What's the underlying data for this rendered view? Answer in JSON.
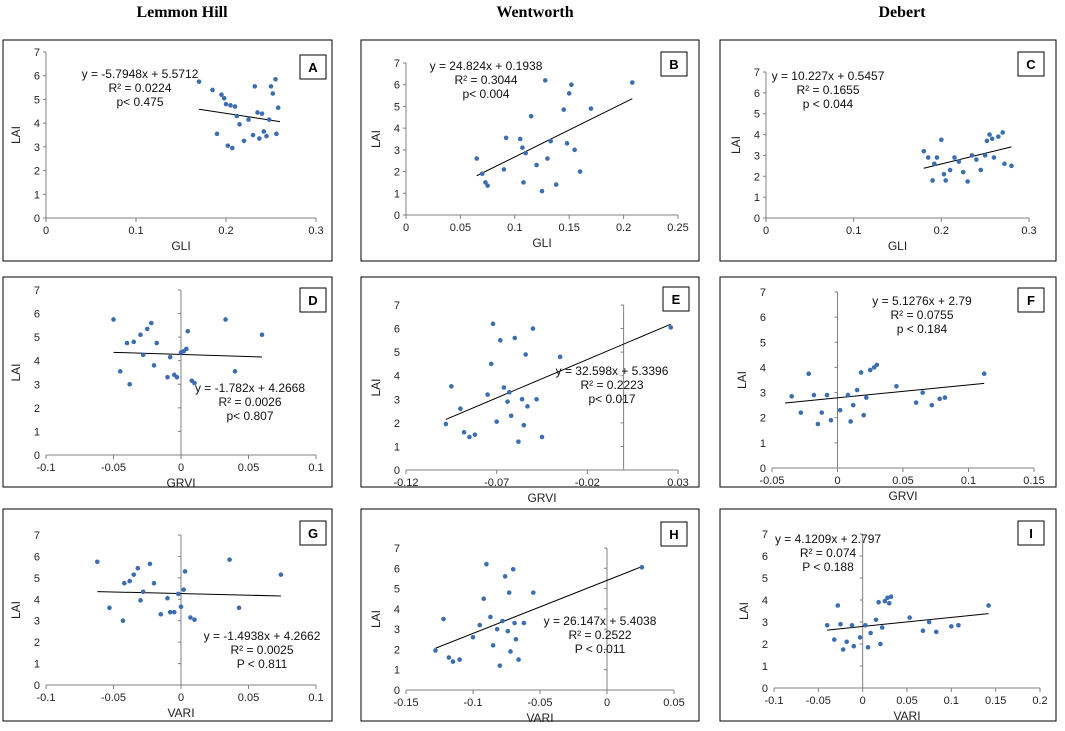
{
  "columns": [
    "Lemmon Hill",
    "Wentworth",
    "Debert"
  ],
  "colors": {
    "point": "#3b6db3",
    "trend": "#000000",
    "axis": "#808080"
  },
  "chart_data": [
    {
      "id": "A",
      "type": "scatter",
      "xlabel": "GLI",
      "ylabel": "LAI",
      "xlim": [
        0,
        0.3
      ],
      "xticks": [
        "0",
        "0.1",
        "0.2",
        "0.3"
      ],
      "ylim": [
        0,
        7
      ],
      "yticks": [
        "0",
        "1",
        "2",
        "3",
        "4",
        "5",
        "6",
        "7"
      ],
      "equation": [
        "y = -5.7948x + 5.5712",
        "R² = 0.0224",
        "p< 0.475"
      ],
      "trend": {
        "slope": -5.7948,
        "intercept": 5.5712,
        "x_range": [
          0.17,
          0.26
        ]
      },
      "points": [
        [
          0.17,
          5.75
        ],
        [
          0.185,
          5.4
        ],
        [
          0.19,
          3.55
        ],
        [
          0.195,
          5.2
        ],
        [
          0.198,
          5.05
        ],
        [
          0.2,
          4.8
        ],
        [
          0.202,
          3.05
        ],
        [
          0.205,
          4.75
        ],
        [
          0.207,
          2.95
        ],
        [
          0.21,
          4.7
        ],
        [
          0.212,
          4.3
        ],
        [
          0.215,
          3.95
        ],
        [
          0.22,
          3.25
        ],
        [
          0.225,
          4.15
        ],
        [
          0.23,
          3.5
        ],
        [
          0.232,
          5.55
        ],
        [
          0.235,
          4.45
        ],
        [
          0.237,
          3.35
        ],
        [
          0.24,
          4.4
        ],
        [
          0.242,
          3.65
        ],
        [
          0.245,
          3.45
        ],
        [
          0.248,
          4.15
        ],
        [
          0.25,
          5.55
        ],
        [
          0.252,
          5.25
        ],
        [
          0.255,
          5.85
        ],
        [
          0.256,
          3.55
        ],
        [
          0.258,
          4.65
        ]
      ]
    },
    {
      "id": "B",
      "type": "scatter",
      "xlabel": "GLI",
      "ylabel": "LAI",
      "xlim": [
        0,
        0.25
      ],
      "xticks": [
        "0",
        "0.05",
        "0.1",
        "0.15",
        "0.2",
        "0.25"
      ],
      "ylim": [
        0,
        7
      ],
      "yticks": [
        "0",
        "1",
        "2",
        "3",
        "4",
        "5",
        "6",
        "7"
      ],
      "equation": [
        "y = 24.824x + 0.1938",
        "R² = 0.3044",
        "p< 0.004"
      ],
      "trend": {
        "slope": 24.824,
        "intercept": 0.1938,
        "x_range": [
          0.065,
          0.208
        ]
      },
      "points": [
        [
          0.065,
          2.6
        ],
        [
          0.07,
          1.9
        ],
        [
          0.073,
          1.5
        ],
        [
          0.075,
          1.35
        ],
        [
          0.09,
          2.1
        ],
        [
          0.092,
          3.55
        ],
        [
          0.105,
          3.5
        ],
        [
          0.107,
          3.1
        ],
        [
          0.11,
          2.85
        ],
        [
          0.108,
          1.5
        ],
        [
          0.115,
          4.55
        ],
        [
          0.12,
          2.3
        ],
        [
          0.125,
          1.1
        ],
        [
          0.128,
          6.2
        ],
        [
          0.13,
          2.6
        ],
        [
          0.133,
          3.4
        ],
        [
          0.138,
          1.4
        ],
        [
          0.145,
          4.85
        ],
        [
          0.148,
          3.3
        ],
        [
          0.15,
          5.6
        ],
        [
          0.152,
          6.0
        ],
        [
          0.155,
          3.0
        ],
        [
          0.16,
          2.0
        ],
        [
          0.17,
          4.9
        ],
        [
          0.208,
          6.1
        ]
      ]
    },
    {
      "id": "C",
      "type": "scatter",
      "xlabel": "GLI",
      "ylabel": "LAI",
      "xlim": [
        0,
        0.3
      ],
      "xticks": [
        "0",
        "0.1",
        "0.2",
        "0.3"
      ],
      "ylim": [
        0,
        7
      ],
      "yticks": [
        "0",
        "1",
        "2",
        "3",
        "4",
        "5",
        "6",
        "7"
      ],
      "equation": [
        "y = 10.227x + 0.5457",
        "R² = 0.1655",
        "p < 0.044"
      ],
      "trend": {
        "slope": 10.227,
        "intercept": 0.5457,
        "x_range": [
          0.18,
          0.28
        ]
      },
      "points": [
        [
          0.18,
          3.2
        ],
        [
          0.185,
          2.9
        ],
        [
          0.19,
          1.8
        ],
        [
          0.192,
          2.6
        ],
        [
          0.195,
          2.9
        ],
        [
          0.2,
          3.75
        ],
        [
          0.203,
          2.1
        ],
        [
          0.205,
          1.8
        ],
        [
          0.21,
          2.3
        ],
        [
          0.215,
          2.9
        ],
        [
          0.22,
          2.7
        ],
        [
          0.225,
          2.2
        ],
        [
          0.23,
          1.75
        ],
        [
          0.235,
          3.0
        ],
        [
          0.24,
          2.8
        ],
        [
          0.245,
          2.3
        ],
        [
          0.25,
          3.0
        ],
        [
          0.252,
          3.7
        ],
        [
          0.255,
          4.0
        ],
        [
          0.258,
          3.8
        ],
        [
          0.26,
          2.9
        ],
        [
          0.265,
          3.9
        ],
        [
          0.27,
          4.1
        ],
        [
          0.272,
          2.6
        ],
        [
          0.28,
          2.5
        ]
      ]
    },
    {
      "id": "D",
      "type": "scatter",
      "xlabel": "GRVI",
      "ylabel": "LAI",
      "xlim": [
        -0.1,
        0.1
      ],
      "xticks": [
        "-0.1",
        "-0.05",
        "0",
        "0.05",
        "0.1"
      ],
      "ylim": [
        0,
        7
      ],
      "yticks": [
        "0",
        "1",
        "2",
        "3",
        "4",
        "5",
        "6",
        "7"
      ],
      "equation": [
        "y = -1.782x + 4.2668",
        "R² = 0.0026",
        "p< 0.807"
      ],
      "trend": {
        "slope": -1.782,
        "intercept": 4.2668,
        "x_range": [
          -0.05,
          0.06
        ]
      },
      "points": [
        [
          -0.05,
          5.75
        ],
        [
          -0.045,
          3.55
        ],
        [
          -0.04,
          4.75
        ],
        [
          -0.038,
          3.0
        ],
        [
          -0.035,
          4.8
        ],
        [
          -0.03,
          5.1
        ],
        [
          -0.028,
          4.25
        ],
        [
          -0.025,
          5.35
        ],
        [
          -0.022,
          5.6
        ],
        [
          -0.02,
          3.8
        ],
        [
          -0.018,
          4.75
        ],
        [
          -0.01,
          3.3
        ],
        [
          -0.008,
          4.15
        ],
        [
          -0.005,
          3.4
        ],
        [
          -0.003,
          3.3
        ],
        [
          0.0,
          4.35
        ],
        [
          0.002,
          4.4
        ],
        [
          0.004,
          4.5
        ],
        [
          0.005,
          5.25
        ],
        [
          0.008,
          3.15
        ],
        [
          0.01,
          3.05
        ],
        [
          0.033,
          5.75
        ],
        [
          0.04,
          3.55
        ],
        [
          0.06,
          5.1
        ]
      ]
    },
    {
      "id": "E",
      "type": "scatter",
      "xlabel": "GRVI",
      "ylabel": "LAI",
      "xlim": [
        -0.12,
        0.03
      ],
      "xticks": [
        "-0.12",
        "-0.07",
        "-0.02",
        "0.03"
      ],
      "ylim": [
        0,
        7
      ],
      "yticks": [
        "0",
        "1",
        "2",
        "3",
        "4",
        "5",
        "6",
        "7"
      ],
      "equation": [
        "y = 32.598x + 5.3396",
        "R² = 0.2223",
        "p< 0.017"
      ],
      "trend": {
        "slope": 32.598,
        "intercept": 5.3396,
        "x_range": [
          -0.098,
          0.026
        ]
      },
      "points": [
        [
          -0.098,
          1.95
        ],
        [
          -0.095,
          3.55
        ],
        [
          -0.09,
          2.6
        ],
        [
          -0.088,
          1.6
        ],
        [
          -0.085,
          1.4
        ],
        [
          -0.082,
          1.5
        ],
        [
          -0.075,
          3.2
        ],
        [
          -0.073,
          4.5
        ],
        [
          -0.072,
          6.2
        ],
        [
          -0.07,
          2.05
        ],
        [
          -0.068,
          5.5
        ],
        [
          -0.066,
          3.5
        ],
        [
          -0.064,
          2.9
        ],
        [
          -0.063,
          3.3
        ],
        [
          -0.062,
          2.3
        ],
        [
          -0.06,
          5.6
        ],
        [
          -0.058,
          1.2
        ],
        [
          -0.056,
          3.0
        ],
        [
          -0.055,
          1.9
        ],
        [
          -0.054,
          4.9
        ],
        [
          -0.053,
          2.7
        ],
        [
          -0.05,
          6.0
        ],
        [
          -0.048,
          3.0
        ],
        [
          -0.045,
          1.4
        ],
        [
          -0.035,
          4.8
        ],
        [
          0.026,
          6.05
        ]
      ]
    },
    {
      "id": "F",
      "type": "scatter",
      "xlabel": "GRVI",
      "ylabel": "LAI",
      "xlim": [
        -0.05,
        0.15
      ],
      "xticks": [
        "-0.05",
        "0",
        "0.05",
        "0.1",
        "0.15"
      ],
      "ylim": [
        0,
        7
      ],
      "yticks": [
        "0",
        "1",
        "2",
        "3",
        "4",
        "5",
        "6",
        "7"
      ],
      "equation": [
        "y = 5.1276x + 2.79",
        "R² = 0.0755",
        "p < 0.184"
      ],
      "trend": {
        "slope": 5.1276,
        "intercept": 2.79,
        "x_range": [
          -0.04,
          0.112
        ]
      },
      "points": [
        [
          -0.035,
          2.85
        ],
        [
          -0.028,
          2.2
        ],
        [
          -0.022,
          3.75
        ],
        [
          -0.018,
          2.9
        ],
        [
          -0.015,
          1.75
        ],
        [
          -0.012,
          2.2
        ],
        [
          -0.008,
          2.9
        ],
        [
          -0.005,
          1.9
        ],
        [
          0.002,
          2.3
        ],
        [
          0.008,
          2.9
        ],
        [
          0.01,
          1.85
        ],
        [
          0.012,
          2.5
        ],
        [
          0.015,
          3.1
        ],
        [
          0.018,
          3.8
        ],
        [
          0.02,
          2.1
        ],
        [
          0.022,
          2.8
        ],
        [
          0.025,
          3.9
        ],
        [
          0.028,
          4.0
        ],
        [
          0.03,
          4.1
        ],
        [
          0.045,
          3.25
        ],
        [
          0.06,
          2.6
        ],
        [
          0.065,
          3.0
        ],
        [
          0.072,
          2.5
        ],
        [
          0.078,
          2.75
        ],
        [
          0.082,
          2.8
        ],
        [
          0.112,
          3.75
        ]
      ]
    },
    {
      "id": "G",
      "type": "scatter",
      "xlabel": "VARI",
      "ylabel": "LAI",
      "xlim": [
        -0.1,
        0.1
      ],
      "xticks": [
        "-0.1",
        "-0.05",
        "0",
        "0.05",
        "0.1"
      ],
      "ylim": [
        0,
        7
      ],
      "yticks": [
        "0",
        "1",
        "2",
        "3",
        "4",
        "5",
        "6",
        "7"
      ],
      "equation": [
        "y = -1.4938x + 4.2662",
        "R² = 0.0025",
        "P < 0.811"
      ],
      "trend": {
        "slope": -1.4938,
        "intercept": 4.2662,
        "x_range": [
          -0.062,
          0.074
        ]
      },
      "points": [
        [
          -0.062,
          5.75
        ],
        [
          -0.053,
          3.6
        ],
        [
          -0.043,
          3.0
        ],
        [
          -0.042,
          4.75
        ],
        [
          -0.038,
          4.85
        ],
        [
          -0.035,
          5.15
        ],
        [
          -0.032,
          5.45
        ],
        [
          -0.03,
          3.95
        ],
        [
          -0.028,
          4.35
        ],
        [
          -0.023,
          5.65
        ],
        [
          -0.02,
          4.75
        ],
        [
          -0.015,
          3.3
        ],
        [
          -0.01,
          4.05
        ],
        [
          -0.008,
          3.4
        ],
        [
          -0.005,
          3.4
        ],
        [
          -0.002,
          4.25
        ],
        [
          0.0,
          3.65
        ],
        [
          0.002,
          4.45
        ],
        [
          0.003,
          5.3
        ],
        [
          0.007,
          3.15
        ],
        [
          0.01,
          3.05
        ],
        [
          0.036,
          5.85
        ],
        [
          0.043,
          3.6
        ],
        [
          0.074,
          5.15
        ]
      ]
    },
    {
      "id": "H",
      "type": "scatter",
      "xlabel": "VARI",
      "ylabel": "LAI",
      "xlim": [
        -0.15,
        0.05
      ],
      "xticks": [
        "-0.15",
        "-0.1",
        "-0.05",
        "0",
        "0.05"
      ],
      "ylim": [
        0,
        7
      ],
      "yticks": [
        "0",
        "1",
        "2",
        "3",
        "4",
        "5",
        "6",
        "7"
      ],
      "equation": [
        "y = 26.147x + 5.4038",
        "R² = 0.2522",
        "P < 0.011"
      ],
      "trend": {
        "slope": 26.147,
        "intercept": 5.4038,
        "x_range": [
          -0.128,
          0.026
        ]
      },
      "points": [
        [
          -0.128,
          1.95
        ],
        [
          -0.122,
          3.5
        ],
        [
          -0.118,
          1.6
        ],
        [
          -0.115,
          1.4
        ],
        [
          -0.11,
          1.5
        ],
        [
          -0.1,
          2.6
        ],
        [
          -0.095,
          3.2
        ],
        [
          -0.092,
          4.5
        ],
        [
          -0.09,
          6.2
        ],
        [
          -0.087,
          3.6
        ],
        [
          -0.085,
          2.2
        ],
        [
          -0.082,
          3.0
        ],
        [
          -0.08,
          1.2
        ],
        [
          -0.078,
          3.4
        ],
        [
          -0.076,
          5.6
        ],
        [
          -0.074,
          2.9
        ],
        [
          -0.073,
          4.8
        ],
        [
          -0.072,
          1.9
        ],
        [
          -0.07,
          5.95
        ],
        [
          -0.069,
          3.3
        ],
        [
          -0.068,
          2.5
        ],
        [
          -0.066,
          1.5
        ],
        [
          -0.062,
          3.3
        ],
        [
          -0.055,
          4.8
        ],
        [
          0.026,
          6.05
        ]
      ]
    },
    {
      "id": "I",
      "type": "scatter",
      "xlabel": "VARI",
      "ylabel": "LAI",
      "xlim": [
        -0.1,
        0.2
      ],
      "xticks": [
        "-0.1",
        "-0.05",
        "0",
        "0.05",
        "0.1",
        "0.15",
        "0.2"
      ],
      "ylim": [
        0,
        7
      ],
      "yticks": [
        "0",
        "1",
        "2",
        "3",
        "4",
        "5",
        "6",
        "7"
      ],
      "equation": [
        "y = 4.1209x + 2.797",
        "R² = 0.074",
        "P < 0.188"
      ],
      "trend": {
        "slope": 4.1209,
        "intercept": 2.797,
        "x_range": [
          -0.04,
          0.142
        ]
      },
      "points": [
        [
          -0.04,
          2.85
        ],
        [
          -0.032,
          2.2
        ],
        [
          -0.028,
          3.75
        ],
        [
          -0.025,
          2.9
        ],
        [
          -0.022,
          1.75
        ],
        [
          -0.018,
          2.1
        ],
        [
          -0.012,
          2.85
        ],
        [
          -0.01,
          1.9
        ],
        [
          -0.003,
          2.3
        ],
        [
          0.003,
          2.85
        ],
        [
          0.006,
          1.85
        ],
        [
          0.009,
          2.5
        ],
        [
          0.015,
          3.1
        ],
        [
          0.018,
          3.9
        ],
        [
          0.02,
          2.0
        ],
        [
          0.022,
          2.75
        ],
        [
          0.025,
          3.95
        ],
        [
          0.028,
          4.1
        ],
        [
          0.03,
          3.85
        ],
        [
          0.032,
          4.15
        ],
        [
          0.053,
          3.2
        ],
        [
          0.068,
          2.6
        ],
        [
          0.075,
          3.0
        ],
        [
          0.083,
          2.55
        ],
        [
          0.1,
          2.8
        ],
        [
          0.108,
          2.85
        ],
        [
          0.142,
          3.75
        ]
      ]
    }
  ]
}
